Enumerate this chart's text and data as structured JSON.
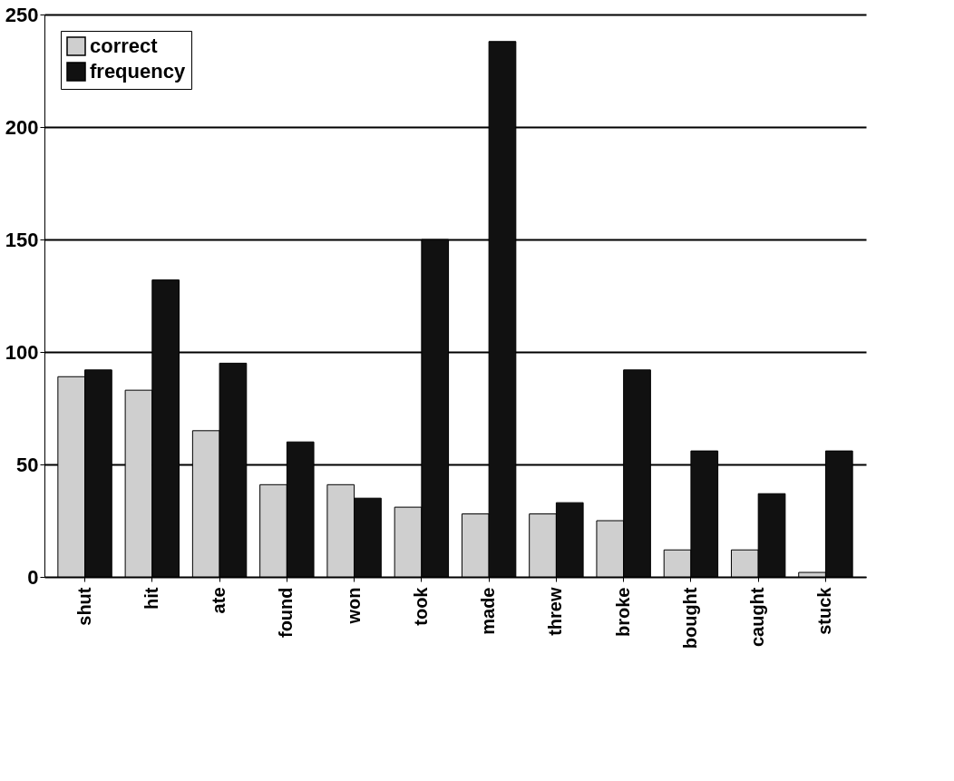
{
  "chart_data": {
    "type": "bar",
    "categories": [
      "shut",
      "hit",
      "ate",
      "found",
      "won",
      "took",
      "made",
      "threw",
      "broke",
      "bought",
      "caught",
      "stuck"
    ],
    "series": [
      {
        "name": "correct",
        "color": "#cfcfcf",
        "values": [
          89,
          83,
          65,
          41,
          41,
          31,
          28,
          28,
          25,
          12,
          12,
          2
        ]
      },
      {
        "name": "frequency",
        "color": "#111111",
        "values": [
          92,
          132,
          95,
          60,
          35,
          150,
          238,
          33,
          92,
          56,
          37,
          56
        ]
      }
    ],
    "ylim": [
      0,
      250
    ],
    "yticks": [
      0,
      50,
      100,
      150,
      200,
      250
    ],
    "grid": "y",
    "legend": "top left"
  }
}
